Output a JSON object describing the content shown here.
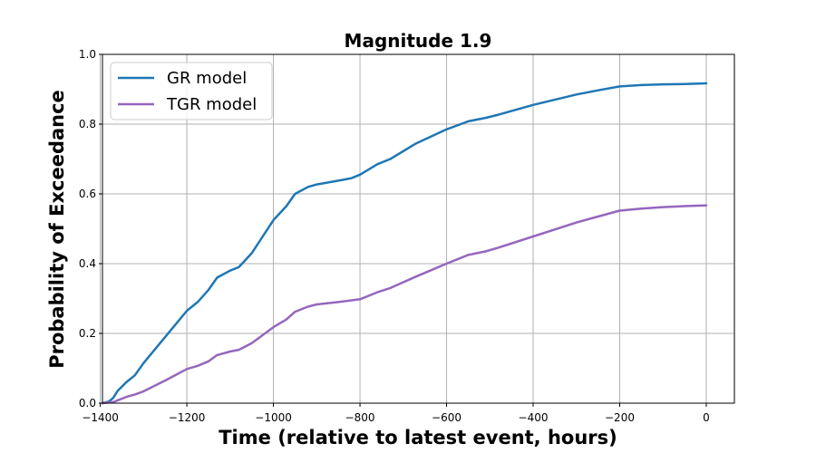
{
  "chart_data": {
    "type": "line",
    "title": "Magnitude 1.9",
    "xlabel": "Time (relative to latest event, hours)",
    "ylabel": "Probability of Exceedance",
    "xlim": [
      -1395,
      65
    ],
    "ylim": [
      0,
      1
    ],
    "xticks": [
      -1400,
      -1200,
      -1000,
      -800,
      -600,
      -400,
      -200,
      0
    ],
    "xtick_labels": [
      "−1400",
      "−1200",
      "−1000",
      "−800",
      "−600",
      "−400",
      "−200",
      "0"
    ],
    "yticks": [
      0,
      0.2,
      0.4,
      0.6,
      0.8,
      1.0
    ],
    "ytick_labels": [
      "0.0",
      "0.2",
      "0.4",
      "0.6",
      "0.8",
      "1.0"
    ],
    "grid": true,
    "legend_position": "top-left",
    "series": [
      {
        "name": "GR model",
        "color": "#1f77b4",
        "points": [
          [
            -1395,
            0
          ],
          [
            -1380,
            0.005
          ],
          [
            -1370,
            0.015
          ],
          [
            -1360,
            0.035
          ],
          [
            -1340,
            0.06
          ],
          [
            -1320,
            0.08
          ],
          [
            -1300,
            0.115
          ],
          [
            -1250,
            0.19
          ],
          [
            -1200,
            0.265
          ],
          [
            -1175,
            0.29
          ],
          [
            -1150,
            0.325
          ],
          [
            -1130,
            0.36
          ],
          [
            -1100,
            0.38
          ],
          [
            -1080,
            0.39
          ],
          [
            -1050,
            0.43
          ],
          [
            -1000,
            0.525
          ],
          [
            -970,
            0.565
          ],
          [
            -950,
            0.6
          ],
          [
            -920,
            0.62
          ],
          [
            -900,
            0.627
          ],
          [
            -850,
            0.638
          ],
          [
            -820,
            0.645
          ],
          [
            -800,
            0.655
          ],
          [
            -760,
            0.685
          ],
          [
            -730,
            0.7
          ],
          [
            -670,
            0.745
          ],
          [
            -600,
            0.785
          ],
          [
            -550,
            0.808
          ],
          [
            -510,
            0.818
          ],
          [
            -480,
            0.827
          ],
          [
            -400,
            0.855
          ],
          [
            -300,
            0.885
          ],
          [
            -250,
            0.897
          ],
          [
            -200,
            0.908
          ],
          [
            -150,
            0.912
          ],
          [
            -100,
            0.914
          ],
          [
            -50,
            0.915
          ],
          [
            0,
            0.917
          ]
        ]
      },
      {
        "name": "TGR model",
        "color": "#9467bd",
        "points": [
          [
            -1395,
            0
          ],
          [
            -1370,
            0.003
          ],
          [
            -1340,
            0.018
          ],
          [
            -1320,
            0.025
          ],
          [
            -1300,
            0.034
          ],
          [
            -1250,
            0.065
          ],
          [
            -1200,
            0.098
          ],
          [
            -1175,
            0.107
          ],
          [
            -1150,
            0.12
          ],
          [
            -1130,
            0.138
          ],
          [
            -1100,
            0.148
          ],
          [
            -1080,
            0.153
          ],
          [
            -1050,
            0.172
          ],
          [
            -1000,
            0.218
          ],
          [
            -970,
            0.24
          ],
          [
            -950,
            0.262
          ],
          [
            -920,
            0.277
          ],
          [
            -900,
            0.283
          ],
          [
            -850,
            0.29
          ],
          [
            -800,
            0.298
          ],
          [
            -760,
            0.318
          ],
          [
            -730,
            0.33
          ],
          [
            -670,
            0.363
          ],
          [
            -600,
            0.4
          ],
          [
            -550,
            0.425
          ],
          [
            -510,
            0.435
          ],
          [
            -480,
            0.446
          ],
          [
            -400,
            0.478
          ],
          [
            -300,
            0.518
          ],
          [
            -250,
            0.535
          ],
          [
            -200,
            0.552
          ],
          [
            -150,
            0.558
          ],
          [
            -100,
            0.562
          ],
          [
            -50,
            0.565
          ],
          [
            0,
            0.567
          ]
        ]
      }
    ]
  }
}
